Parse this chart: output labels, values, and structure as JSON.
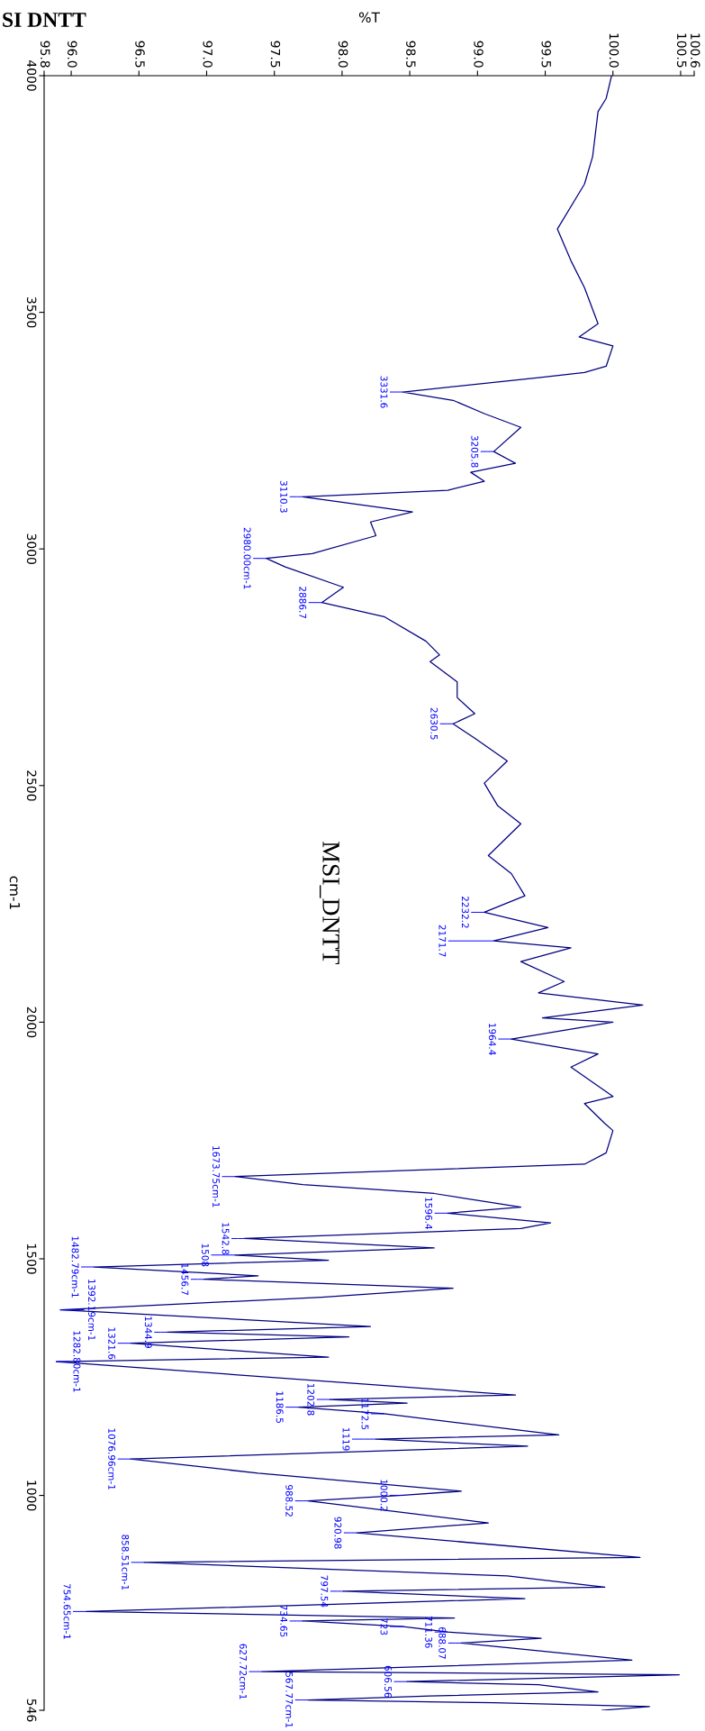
{
  "chart_data": {
    "type": "line",
    "orientation": "horizontal",
    "title": "SI DNTT",
    "xlabel": "%T",
    "ylabel": "cm-1",
    "xlim": [
      95.8,
      100.6
    ],
    "xticks": [
      95.8,
      {
        "value": 96,
        "label": "96.0"
      },
      96.5,
      {
        "value": 97,
        "label": "97.0"
      },
      97.5,
      {
        "value": 98,
        "label": "98.0"
      },
      98.5,
      {
        "value": 99,
        "label": "99.0"
      },
      99.5,
      {
        "value": 100,
        "label": "100.0"
      },
      100.5,
      100.6
    ],
    "ylim": [
      546,
      4000
    ],
    "yticks": [
      4000,
      3500,
      3000,
      2500,
      2000,
      1500,
      1000,
      546
    ],
    "x": [
      4000,
      3952,
      3924,
      3829,
      3771,
      3676,
      3609,
      3552,
      3476,
      3448,
      3429,
      3386,
      3373,
      3362,
      3331.6,
      3314,
      3286,
      3257,
      3205.8,
      3181,
      3162,
      3143,
      3124,
      3110.3,
      3078,
      3057,
      3028,
      2990,
      2980.0,
      2962,
      2919,
      2886.7,
      2857,
      2805,
      2776,
      2762,
      2719,
      2686,
      2652,
      2630.5,
      2600,
      2552,
      2505,
      2457,
      2419,
      2352,
      2314,
      2267,
      2232.2,
      2200,
      2171.7,
      2157,
      2128,
      2086,
      2062,
      2036,
      2009,
      2000,
      1964.4,
      1933,
      1905,
      1843,
      1828,
      1786,
      1771,
      1724,
      1700,
      1673.75,
      1657,
      1638,
      1609,
      1596.4,
      1576,
      1564,
      1542.8,
      1523,
      1508,
      1497,
      1482.79,
      1464,
      1456.7,
      1438,
      1419,
      1392.19,
      1357,
      1344.9,
      1335,
      1321.6,
      1292,
      1282.8,
      1212,
      1202.8,
      1195,
      1186.5,
      1172.5,
      1128,
      1119,
      1104,
      1076.96,
      1047,
      1009,
      1000.2,
      988.52,
      942,
      920.98,
      869,
      858.51,
      830,
      806,
      797.54,
      782,
      754.65,
      741,
      734.65,
      723,
      711.36,
      698,
      688.07,
      652,
      627.72,
      621,
      606.56,
      600,
      585,
      576,
      567.77,
      562,
      554,
      546
    ],
    "series": [
      {
        "color": "#000080",
        "values": [
          99.99,
          99.95,
          99.89,
          99.85,
          99.79,
          99.59,
          99.69,
          99.79,
          99.89,
          99.75,
          100.0,
          99.95,
          99.79,
          99.45,
          98.45,
          98.82,
          99.05,
          99.32,
          99.12,
          99.28,
          98.95,
          99.05,
          98.78,
          97.71,
          98.52,
          98.21,
          98.25,
          97.78,
          97.44,
          97.58,
          98.01,
          97.85,
          98.31,
          98.62,
          98.72,
          98.65,
          98.85,
          98.85,
          98.98,
          98.82,
          98.98,
          99.22,
          99.05,
          99.15,
          99.32,
          99.08,
          99.25,
          99.35,
          99.05,
          99.52,
          99.12,
          99.69,
          99.32,
          99.64,
          99.45,
          100.22,
          99.48,
          100.0,
          99.25,
          99.89,
          99.69,
          100.0,
          99.79,
          99.94,
          100.0,
          99.95,
          99.79,
          97.21,
          97.71,
          98.68,
          99.32,
          98.78,
          99.54,
          99.32,
          97.28,
          98.68,
          97.21,
          97.9,
          96.17,
          97.38,
          96.98,
          98.82,
          97.85,
          95.92,
          98.21,
          96.71,
          98.05,
          96.44,
          97.9,
          95.89,
          99.28,
          97.91,
          98.48,
          97.68,
          98.31,
          99.6,
          98.25,
          99.37,
          96.44,
          97.38,
          98.88,
          98.45,
          97.75,
          99.08,
          98.11,
          100.2,
          96.54,
          99.22,
          99.94,
          98.01,
          99.35,
          96.11,
          98.83,
          97.71,
          98.45,
          98.78,
          99.47,
          98.88,
          100.14,
          97.41,
          100.49,
          98.48,
          99.45,
          99.89,
          98.65,
          97.75,
          99.12,
          100.27,
          99.92
        ]
      }
    ],
    "annotations": [
      "MSI_DNTT",
      {
        "text": "3331.6",
        "x": 98.45,
        "y": 3331.6
      },
      {
        "text": "3205.8",
        "x": 99.12,
        "y": 3205.8
      },
      {
        "text": "3110.3",
        "x": 97.71,
        "y": 3110.3
      },
      {
        "text": "2980.00cm-1",
        "x": 97.44,
        "y": 2980.0
      },
      {
        "text": "2886.7",
        "x": 97.85,
        "y": 2886.7
      },
      {
        "text": "2630.5",
        "x": 98.82,
        "y": 2630.5
      },
      {
        "text": "2232.2",
        "x": 99.05,
        "y": 2232.2
      },
      {
        "text": "2171.7",
        "x": 99.12,
        "y": 2171.7
      },
      {
        "text": "1964.4",
        "x": 99.25,
        "y": 1964.4
      },
      {
        "text": "1673.75cm-1",
        "x": 97.21,
        "y": 1673.75
      },
      {
        "text": "1596.4",
        "x": 98.78,
        "y": 1596.4
      },
      {
        "text": "1542.8",
        "x": 97.28,
        "y": 1542.8
      },
      {
        "text": "1508",
        "x": 97.21,
        "y": 1508
      },
      {
        "text": "1482.79cm-1",
        "x": 96.17,
        "y": 1482.79
      },
      {
        "text": "1456.7",
        "x": 96.98,
        "y": 1456.7
      },
      {
        "text": "1392.19cm-1",
        "x": 95.92,
        "y": 1392.19
      },
      {
        "text": "1344.9",
        "x": 96.71,
        "y": 1344.9
      },
      {
        "text": "1321.6",
        "x": 96.44,
        "y": 1321.6
      },
      {
        "text": "1282.80cm-1",
        "x": 95.89,
        "y": 1282.8
      },
      {
        "text": "1202.8",
        "x": 97.91,
        "y": 1202.8
      },
      {
        "text": "1186.5",
        "x": 97.68,
        "y": 1186.5
      },
      {
        "text": "1172.5",
        "x": 98.31,
        "y": 1172.5
      },
      {
        "text": "1119",
        "x": 98.25,
        "y": 1119
      },
      {
        "text": "1076.96cm-1",
        "x": 96.44,
        "y": 1076.96
      },
      {
        "text": "1000.2",
        "x": 98.45,
        "y": 1000.2
      },
      {
        "text": "988.52",
        "x": 97.75,
        "y": 988.52
      },
      {
        "text": "920.98",
        "x": 98.11,
        "y": 920.98
      },
      {
        "text": "858.51cm-1",
        "x": 96.54,
        "y": 858.51
      },
      {
        "text": "797.54",
        "x": 98.01,
        "y": 797.54
      },
      {
        "text": "754.65cm-1",
        "x": 96.11,
        "y": 754.65
      },
      {
        "text": "734.65",
        "x": 97.71,
        "y": 734.65
      },
      {
        "text": "723",
        "x": 98.45,
        "y": 723
      },
      {
        "text": "711.36",
        "x": 98.78,
        "y": 711.36
      },
      {
        "text": "688.07",
        "x": 98.88,
        "y": 688.07
      },
      {
        "text": "627.72cm-1",
        "x": 97.41,
        "y": 627.72
      },
      {
        "text": "606.56",
        "x": 98.48,
        "y": 606.56
      },
      {
        "text": "567.77cm-1",
        "x": 97.75,
        "y": 567.77
      }
    ]
  }
}
